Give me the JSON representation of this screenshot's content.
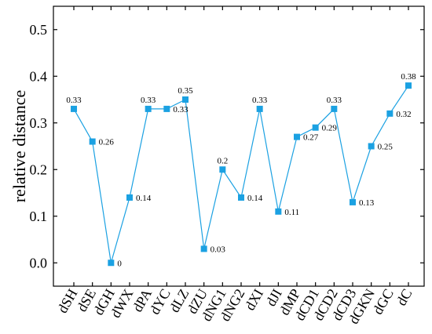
{
  "chart_data": {
    "type": "line",
    "title": "",
    "xlabel": "",
    "ylabel": "relative distance",
    "ylim": [
      -0.05,
      0.55
    ],
    "yticks": [
      0.0,
      0.1,
      0.2,
      0.3,
      0.4,
      0.5
    ],
    "ytick_labels": [
      "0.0",
      "0.1",
      "0.2",
      "0.3",
      "0.4",
      "0.5"
    ],
    "categories": [
      "dSH",
      "dSE",
      "dGH",
      "dWX",
      "dPA",
      "dYC",
      "dLZ",
      "dZU",
      "dNG1",
      "dNG2",
      "dXI",
      "dJI",
      "dMP",
      "dCD1",
      "dCD2",
      "dCD3",
      "dGKN",
      "dGC",
      "dC"
    ],
    "series": [
      {
        "values": [
          0.33,
          0.26,
          0.0,
          0.14,
          0.33,
          0.33,
          0.35,
          0.03,
          0.2,
          0.14,
          0.33,
          0.11,
          0.27,
          0.29,
          0.33,
          0.13,
          0.25,
          0.32,
          0.38
        ],
        "data_labels": [
          "0.33",
          "0.26",
          "0",
          "0.14",
          "0.33",
          "0.33",
          "0.35",
          "0.03",
          "0.2",
          "0.14",
          "0.33",
          "0.11",
          "0.27",
          "0.29",
          "0.33",
          "0.13",
          "0.25",
          "0.32",
          "0.38"
        ],
        "color": "#1ba1e2",
        "marker": "square"
      }
    ],
    "grid": false,
    "legend": "none"
  }
}
